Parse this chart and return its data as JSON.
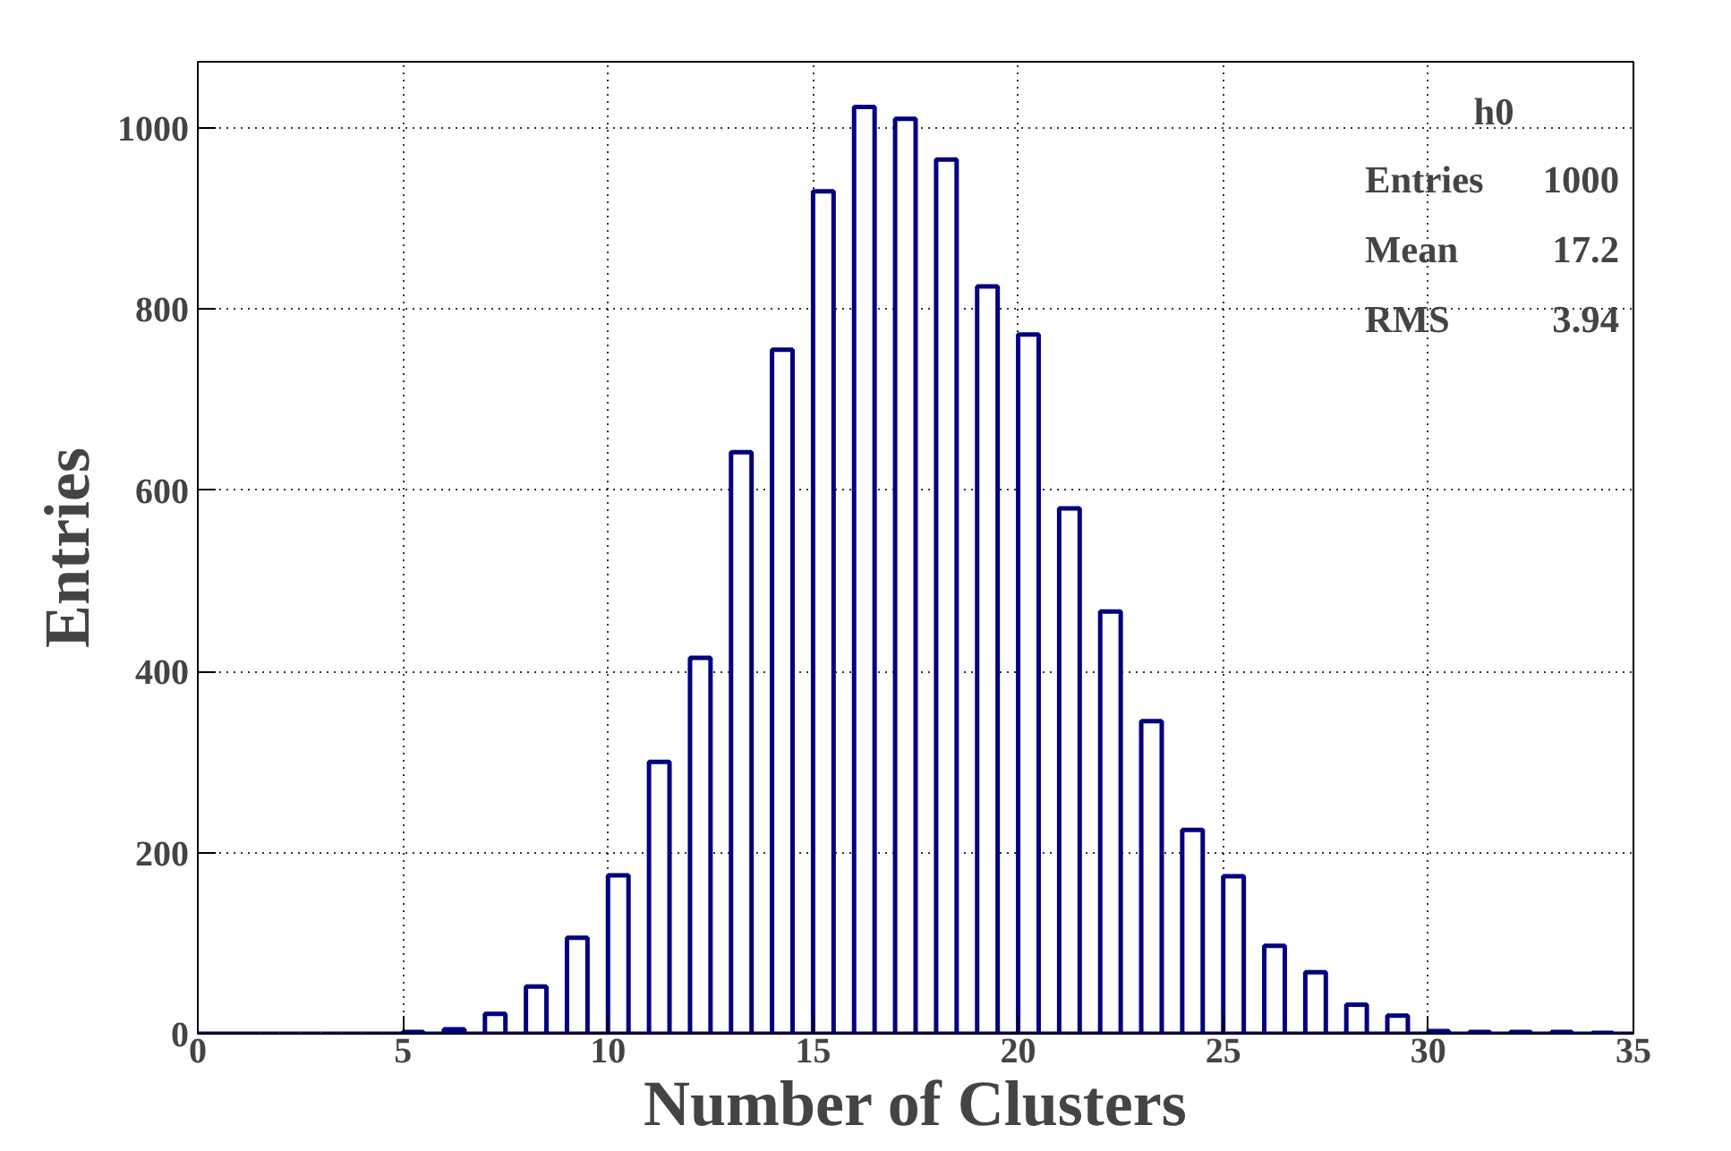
{
  "chart_data": {
    "type": "histogram",
    "ylabel": "Entries",
    "xlabel": "Number of Clusters",
    "bins": [
      0,
      0.5,
      1,
      1.5,
      2,
      2.5,
      3,
      3.5,
      4,
      4.5,
      5,
      5.5,
      6,
      6.5,
      7,
      7.5,
      8,
      8.5,
      9,
      9.5,
      10,
      10.5,
      11,
      11.5,
      12,
      12.5,
      13,
      13.5,
      14,
      14.5,
      15,
      15.5,
      16,
      16.5,
      17,
      17.5,
      18,
      18.5,
      19,
      19.5,
      20,
      20.5,
      21,
      21.5,
      22,
      22.5,
      23,
      23.5,
      24,
      24.5,
      25,
      25.5,
      26,
      26.5,
      27,
      27.5,
      28,
      28.5,
      29,
      29.5,
      30,
      30.5,
      31,
      31.5,
      32,
      32.5,
      33,
      33.5,
      34,
      34.5,
      35
    ],
    "values": [
      0,
      0,
      0,
      0,
      0,
      0,
      0,
      0,
      0,
      0,
      2,
      0,
      5,
      0,
      22,
      0,
      52,
      0,
      106,
      0,
      175,
      0,
      300,
      0,
      415,
      0,
      642,
      0,
      755,
      0,
      930,
      0,
      1023,
      0,
      1010,
      0,
      965,
      0,
      825,
      0,
      772,
      0,
      580,
      0,
      466,
      0,
      345,
      0,
      225,
      0,
      174,
      0,
      97,
      0,
      68,
      0,
      32,
      0,
      20,
      0,
      3,
      0,
      2,
      0,
      2,
      0,
      2,
      0,
      1,
      0
    ],
    "color": "#000080",
    "xlim": [
      0,
      35
    ],
    "xticks": [
      0,
      5,
      10,
      15,
      20,
      25,
      30,
      35
    ],
    "ylim": [
      0,
      1073
    ],
    "yticks": [
      0,
      200,
      400,
      600,
      800,
      1000
    ],
    "grid": true,
    "annotations": [
      "h0",
      "Entries",
      "1000",
      "Mean",
      "17.2",
      "RMS",
      "3.94"
    ]
  }
}
